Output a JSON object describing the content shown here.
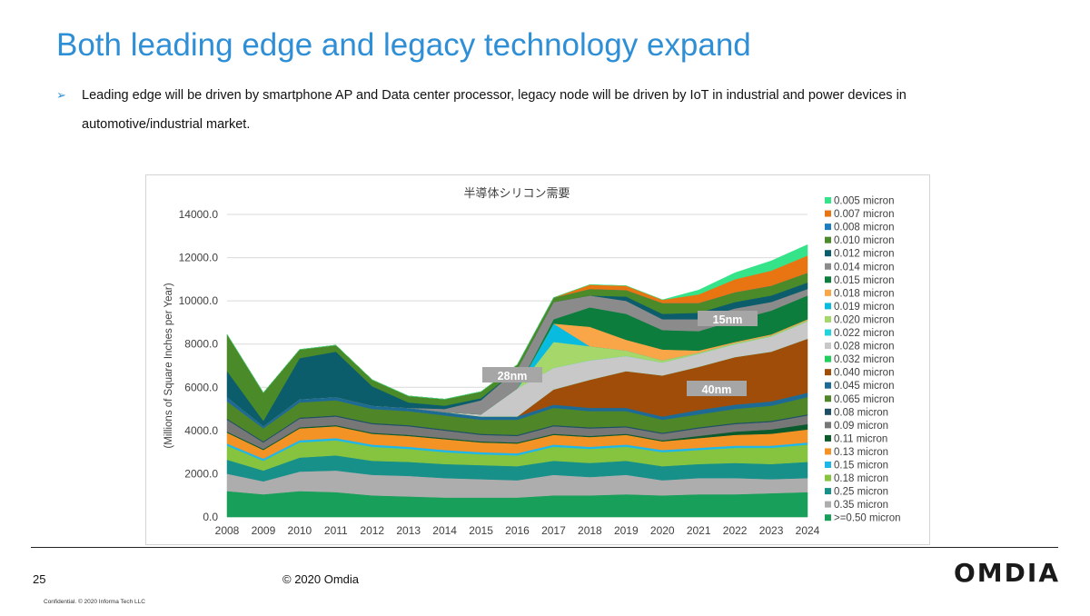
{
  "slide": {
    "title": "Both leading edge and legacy technology expand",
    "bullet": "Leading edge will be driven by smartphone AP and Data center processor, legacy node will be driven by IoT in industrial and power devices in automotive/industrial market.",
    "page_number": "25",
    "copyright": "© 2020 Omdia",
    "confidential": "Confidential. © 2020 Informa Tech LLC",
    "logo_text": "OMDIA"
  },
  "chart_data": {
    "type": "area",
    "stacked": true,
    "title": "半導体シリコン需要",
    "ylabel": "(Millions of Square Inches per Year)",
    "xlabel": "",
    "ylim": [
      0,
      14000
    ],
    "yticks": [
      "0.0",
      "2000.0",
      "4000.0",
      "6000.0",
      "8000.0",
      "10000.0",
      "12000.0",
      "14000.0"
    ],
    "x": [
      "2008",
      "2009",
      "2010",
      "2011",
      "2012",
      "2013",
      "2014",
      "2015",
      "2016",
      "2017",
      "2018",
      "2019",
      "2020",
      "2021",
      "2022",
      "2023",
      "2024"
    ],
    "legend_position": "right",
    "series": [
      {
        "name": ">=0.50 micron",
        "color": "#18a05a",
        "values": [
          1200,
          1050,
          1200,
          1150,
          1000,
          950,
          900,
          900,
          900,
          1000,
          1000,
          1050,
          1000,
          1050,
          1050,
          1100,
          1150
        ]
      },
      {
        "name": "0.35 micron",
        "color": "#adadad",
        "values": [
          800,
          600,
          900,
          1000,
          950,
          950,
          900,
          850,
          800,
          950,
          850,
          900,
          700,
          750,
          750,
          650,
          650
        ]
      },
      {
        "name": "0.25 micron",
        "color": "#17908a",
        "values": [
          650,
          500,
          650,
          700,
          650,
          650,
          650,
          650,
          650,
          650,
          650,
          650,
          650,
          650,
          700,
          700,
          750
        ]
      },
      {
        "name": "0.18 micron",
        "color": "#86c440",
        "values": [
          650,
          450,
          700,
          700,
          650,
          600,
          550,
          500,
          500,
          650,
          650,
          650,
          650,
          650,
          700,
          750,
          800
        ]
      },
      {
        "name": "0.15 micron",
        "color": "#1fb6e9",
        "values": [
          100,
          100,
          100,
          100,
          100,
          100,
          100,
          100,
          100,
          100,
          100,
          100,
          100,
          100,
          100,
          100,
          100
        ]
      },
      {
        "name": "0.13 micron",
        "color": "#f39325",
        "values": [
          500,
          400,
          550,
          550,
          500,
          500,
          500,
          450,
          450,
          450,
          450,
          450,
          400,
          450,
          500,
          550,
          600
        ]
      },
      {
        "name": "0.11 micron",
        "color": "#0a5a2c",
        "values": [
          50,
          50,
          50,
          50,
          50,
          50,
          50,
          50,
          50,
          50,
          50,
          50,
          50,
          100,
          150,
          200,
          250
        ]
      },
      {
        "name": "0.09 micron",
        "color": "#777777",
        "values": [
          550,
          300,
          400,
          400,
          400,
          400,
          350,
          300,
          300,
          350,
          350,
          300,
          300,
          350,
          350,
          350,
          400
        ]
      },
      {
        "name": "0.08 micron",
        "color": "#1c4f66",
        "values": [
          50,
          50,
          50,
          50,
          50,
          50,
          50,
          50,
          50,
          50,
          50,
          50,
          50,
          50,
          50,
          50,
          50
        ]
      },
      {
        "name": "0.065 micron",
        "color": "#4f8628",
        "values": [
          800,
          600,
          700,
          700,
          650,
          650,
          650,
          650,
          700,
          800,
          750,
          700,
          600,
          600,
          650,
          700,
          800
        ]
      },
      {
        "name": "0.045 micron",
        "color": "#1d6b95",
        "values": [
          200,
          100,
          150,
          150,
          150,
          150,
          150,
          150,
          150,
          150,
          150,
          150,
          150,
          200,
          200,
          200,
          200
        ]
      },
      {
        "name": "0.040 micron",
        "color": "#a04d0a",
        "values": [
          0,
          0,
          0,
          0,
          0,
          0,
          0,
          0,
          0,
          700,
          1300,
          1700,
          1900,
          2000,
          2200,
          2300,
          2500
        ]
      },
      {
        "name": "0.032 micron",
        "color": "#1fcf5c",
        "values": [
          0,
          0,
          0,
          0,
          0,
          0,
          0,
          0,
          0,
          0,
          0,
          0,
          0,
          0,
          0,
          0,
          0
        ]
      },
      {
        "name": "0.028 micron",
        "color": "#c8c8c8",
        "values": [
          0,
          0,
          0,
          0,
          0,
          0,
          0,
          100,
          1300,
          1000,
          900,
          700,
          600,
          600,
          600,
          700,
          800
        ]
      },
      {
        "name": "0.022 micron",
        "color": "#22d3dd",
        "values": [
          0,
          0,
          0,
          0,
          0,
          0,
          0,
          0,
          0,
          0,
          0,
          0,
          0,
          0,
          0,
          0,
          0
        ]
      },
      {
        "name": "0.020 micron",
        "color": "#a6d76a",
        "values": [
          0,
          0,
          0,
          0,
          0,
          0,
          0,
          0,
          0,
          1200,
          650,
          250,
          100,
          50,
          50,
          50,
          50
        ]
      },
      {
        "name": "0.019 micron",
        "color": "#0abbe0",
        "values": [
          0,
          0,
          0,
          0,
          0,
          0,
          0,
          0,
          0,
          850,
          0,
          0,
          0,
          0,
          0,
          0,
          0
        ]
      },
      {
        "name": "0.018 micron",
        "color": "#f9a648",
        "values": [
          0,
          0,
          0,
          0,
          0,
          0,
          0,
          0,
          0,
          0,
          900,
          500,
          500,
          100,
          50,
          50,
          50
        ]
      },
      {
        "name": "0.015 micron",
        "color": "#0c7d3c",
        "values": [
          0,
          0,
          0,
          0,
          0,
          0,
          0,
          0,
          0,
          200,
          900,
          1200,
          900,
          900,
          1000,
          1100,
          1100
        ]
      },
      {
        "name": "0.014 micron",
        "color": "#8b8b8b",
        "values": [
          0,
          0,
          0,
          0,
          0,
          0,
          150,
          650,
          900,
          800,
          550,
          600,
          500,
          550,
          550,
          400,
          300
        ]
      },
      {
        "name": "0.012 micron",
        "color": "#0b5d6c",
        "values": [
          1200,
          250,
          1900,
          2100,
          900,
          250,
          150,
          100,
          0,
          0,
          0,
          200,
          250,
          300,
          300,
          300,
          300
        ]
      },
      {
        "name": "0.010 micron",
        "color": "#4a8a28",
        "values": [
          1700,
          1300,
          400,
          300,
          300,
          300,
          300,
          300,
          200,
          200,
          300,
          300,
          500,
          450,
          450,
          450,
          450
        ]
      },
      {
        "name": "0.008 micron",
        "color": "#1c7dbf",
        "values": [
          0,
          0,
          0,
          0,
          0,
          0,
          0,
          0,
          0,
          0,
          0,
          0,
          0,
          0,
          0,
          0,
          0
        ]
      },
      {
        "name": "0.007 micron",
        "color": "#e87511",
        "values": [
          0,
          0,
          0,
          0,
          0,
          0,
          0,
          0,
          0,
          0,
          200,
          200,
          150,
          400,
          600,
          700,
          800
        ]
      },
      {
        "name": "0.005 micron",
        "color": "#35e389",
        "values": [
          0,
          0,
          0,
          0,
          0,
          0,
          0,
          0,
          0,
          0,
          0,
          0,
          0,
          200,
          300,
          450,
          500
        ]
      }
    ],
    "annotations": [
      "15nm",
      "28nm",
      "40nm"
    ]
  }
}
